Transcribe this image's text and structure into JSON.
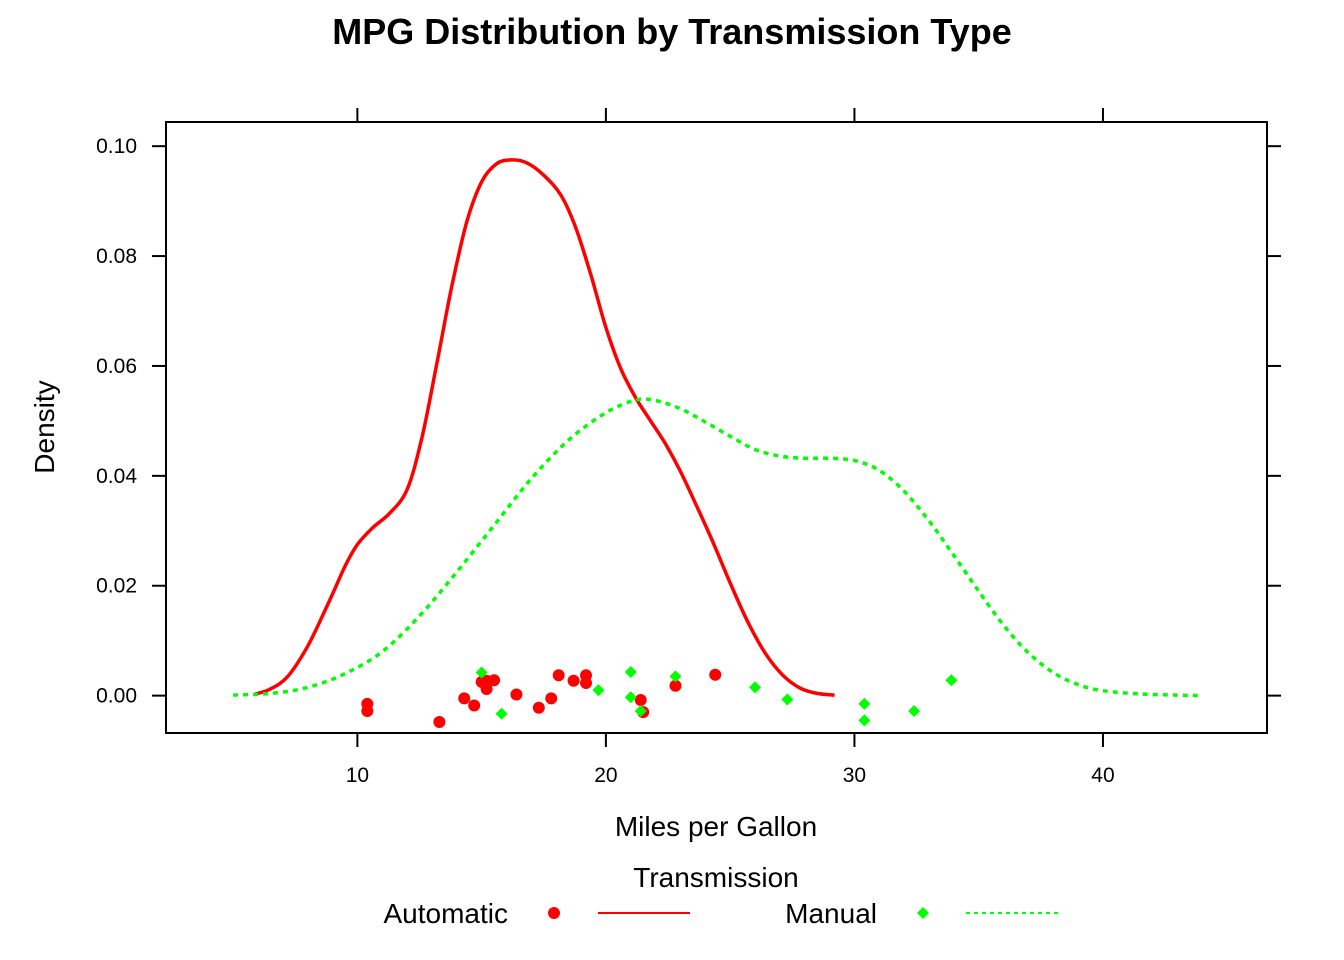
{
  "chart_data": {
    "type": "density",
    "title": "MPG Distribution by Transmission Type",
    "xlabel": "Miles per Gallon",
    "ylabel": "Density",
    "xlim": [
      2.3,
      46.6
    ],
    "ylim": [
      -0.0068,
      0.1044
    ],
    "x_ticks": [
      10,
      20,
      30,
      40
    ],
    "y_ticks": [
      0.0,
      0.02,
      0.04,
      0.06,
      0.08,
      0.1
    ],
    "x_tick_labels": [
      "10",
      "20",
      "30",
      "40"
    ],
    "y_tick_labels": [
      "0.00",
      "0.02",
      "0.04",
      "0.06",
      "0.08",
      "0.10"
    ],
    "grid": false,
    "legend": {
      "title": "Transmission",
      "placement": "bottom"
    },
    "series": [
      {
        "name": "Automatic",
        "color": "#ff0000",
        "line_style": "solid",
        "marker": "circle",
        "density_curve": [
          [
            5.9,
            0.0003
          ],
          [
            6.5,
            0.0012
          ],
          [
            7.2,
            0.0035
          ],
          [
            8.0,
            0.009
          ],
          [
            8.8,
            0.0165
          ],
          [
            9.5,
            0.0235
          ],
          [
            10.0,
            0.0275
          ],
          [
            10.6,
            0.0305
          ],
          [
            11.3,
            0.0332
          ],
          [
            12.0,
            0.0375
          ],
          [
            12.6,
            0.047
          ],
          [
            13.2,
            0.0605
          ],
          [
            13.8,
            0.0745
          ],
          [
            14.4,
            0.0862
          ],
          [
            15.0,
            0.0935
          ],
          [
            15.6,
            0.0968
          ],
          [
            16.2,
            0.0975
          ],
          [
            16.8,
            0.097
          ],
          [
            17.5,
            0.0947
          ],
          [
            18.2,
            0.091
          ],
          [
            18.8,
            0.085
          ],
          [
            19.4,
            0.0765
          ],
          [
            20.0,
            0.067
          ],
          [
            20.6,
            0.0595
          ],
          [
            21.2,
            0.0542
          ],
          [
            21.8,
            0.05
          ],
          [
            22.4,
            0.0458
          ],
          [
            23.0,
            0.0408
          ],
          [
            23.6,
            0.035
          ],
          [
            24.3,
            0.028
          ],
          [
            25.0,
            0.0205
          ],
          [
            25.7,
            0.0135
          ],
          [
            26.4,
            0.0078
          ],
          [
            27.1,
            0.0038
          ],
          [
            27.8,
            0.0014
          ],
          [
            28.5,
            0.0004
          ],
          [
            29.2,
            0.0001
          ]
        ],
        "points": [
          [
            10.4,
            -0.0015
          ],
          [
            10.4,
            -0.0028
          ],
          [
            13.3,
            -0.0048
          ],
          [
            14.3,
            -0.0005
          ],
          [
            14.7,
            -0.0018
          ],
          [
            15.0,
            0.0025
          ],
          [
            15.2,
            0.0012
          ],
          [
            15.2,
            0.0027
          ],
          [
            15.5,
            0.0028
          ],
          [
            16.4,
            0.0002
          ],
          [
            17.3,
            -0.0022
          ],
          [
            17.8,
            -0.0005
          ],
          [
            18.1,
            0.0037
          ],
          [
            18.7,
            0.0027
          ],
          [
            19.2,
            0.0023
          ],
          [
            19.2,
            0.0037
          ],
          [
            21.4,
            -0.0008
          ],
          [
            21.5,
            -0.003
          ],
          [
            22.8,
            0.0018
          ],
          [
            24.4,
            0.0038
          ]
        ]
      },
      {
        "name": "Manual",
        "color": "#00ff00",
        "line_style": "dotted",
        "marker": "diamond",
        "density_curve": [
          [
            5.0,
            0.0001
          ],
          [
            6.5,
            0.0004
          ],
          [
            8.0,
            0.0015
          ],
          [
            9.5,
            0.004
          ],
          [
            11.0,
            0.008
          ],
          [
            12.5,
            0.0145
          ],
          [
            14.0,
            0.0225
          ],
          [
            15.5,
            0.031
          ],
          [
            17.0,
            0.0395
          ],
          [
            18.5,
            0.0465
          ],
          [
            20.0,
            0.0515
          ],
          [
            21.2,
            0.0538
          ],
          [
            22.0,
            0.0537
          ],
          [
            23.0,
            0.0522
          ],
          [
            24.0,
            0.0498
          ],
          [
            25.0,
            0.0472
          ],
          [
            26.0,
            0.0448
          ],
          [
            27.0,
            0.0436
          ],
          [
            28.0,
            0.0432
          ],
          [
            29.0,
            0.0432
          ],
          [
            30.0,
            0.0428
          ],
          [
            31.0,
            0.041
          ],
          [
            32.0,
            0.0372
          ],
          [
            33.0,
            0.0318
          ],
          [
            34.0,
            0.0255
          ],
          [
            35.0,
            0.019
          ],
          [
            36.0,
            0.0128
          ],
          [
            37.0,
            0.0078
          ],
          [
            38.0,
            0.0042
          ],
          [
            39.0,
            0.002
          ],
          [
            40.0,
            0.0009
          ],
          [
            41.5,
            0.0003
          ],
          [
            43.0,
            0.0001
          ],
          [
            44.0,
            0.0
          ]
        ],
        "points": [
          [
            15.0,
            0.0042
          ],
          [
            15.8,
            -0.0033
          ],
          [
            19.7,
            0.001
          ],
          [
            21.0,
            0.0043
          ],
          [
            21.0,
            -0.0003
          ],
          [
            21.4,
            -0.0028
          ],
          [
            22.8,
            0.0035
          ],
          [
            26.0,
            0.0015
          ],
          [
            27.3,
            -0.0007
          ],
          [
            30.4,
            -0.0015
          ],
          [
            30.4,
            -0.0045
          ],
          [
            32.4,
            -0.0028
          ],
          [
            33.9,
            0.0028
          ]
        ]
      }
    ]
  }
}
